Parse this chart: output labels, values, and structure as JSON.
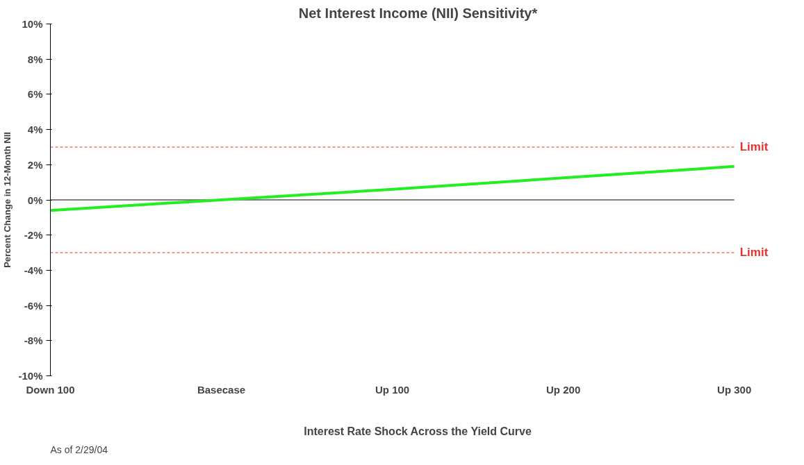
{
  "chart_data": {
    "type": "line",
    "title": "Net Interest Income (NII) Sensitivity*",
    "xlabel": "Interest Rate Shock Across the Yield Curve",
    "ylabel": "Percent Change in 12-Month NII",
    "categories": [
      "Down 100",
      "Basecase",
      "Up 100",
      "Up 200",
      "Up 300"
    ],
    "series": [
      {
        "color": "#22ee22",
        "values": [
          -0.6,
          0,
          0.6,
          1.25,
          1.9
        ]
      }
    ],
    "ylim": [
      -10,
      10
    ],
    "yticks": [
      {
        "value": -10,
        "label": "-10%"
      },
      {
        "value": -8,
        "label": "-8%"
      },
      {
        "value": -6,
        "label": "-6%"
      },
      {
        "value": -4,
        "label": "-4%"
      },
      {
        "value": -2,
        "label": "-2%"
      },
      {
        "value": 0,
        "label": "0%"
      },
      {
        "value": 2,
        "label": "2%"
      },
      {
        "value": 4,
        "label": "4%"
      },
      {
        "value": 6,
        "label": "6%"
      },
      {
        "value": 8,
        "label": "8%"
      },
      {
        "value": 10,
        "label": "10%"
      }
    ],
    "ref_lines": [
      {
        "axis": "y",
        "value": 3,
        "label": "Limit",
        "color": "#e8312f",
        "line_style": "dashed"
      },
      {
        "axis": "y",
        "value": -3,
        "label": "Limit",
        "color": "#e8312f",
        "line_style": "dashed"
      },
      {
        "axis": "y",
        "value": 0,
        "color": "#000000",
        "line_style": "solid"
      }
    ],
    "annotations": [
      "As of 2/29/04"
    ],
    "grid": false,
    "marker": "none",
    "line_style": "solid"
  }
}
